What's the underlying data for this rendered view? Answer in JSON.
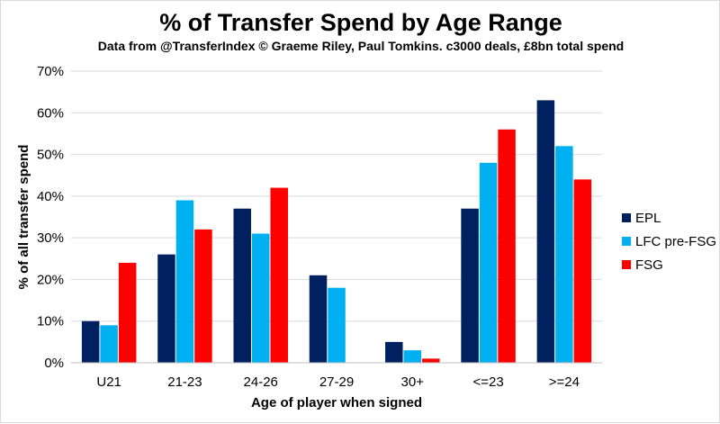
{
  "chart_data": {
    "type": "bar",
    "title": "% of Transfer Spend by Age Range",
    "subtitle": "Data from @TransferIndex © Graeme Riley, Paul Tomkins.  c3000 deals, £8bn total spend",
    "xlabel": "Age of player  when signed",
    "ylabel": "% of all transfer spend",
    "categories": [
      "U21",
      "21-23",
      "24-26",
      "27-29",
      "30+",
      "<=23",
      ">=24"
    ],
    "ylim": [
      0,
      70
    ],
    "yticks": [
      "0%",
      "10%",
      "20%",
      "30%",
      "40%",
      "50%",
      "60%",
      "70%"
    ],
    "grid": true,
    "legend_position": "right",
    "series": [
      {
        "name": "EPL",
        "color": "#002060",
        "values": [
          10,
          26,
          37,
          21,
          5,
          37,
          63
        ]
      },
      {
        "name": "LFC pre-FSG",
        "color": "#00b0f0",
        "values": [
          9,
          39,
          31,
          18,
          3,
          48,
          52
        ]
      },
      {
        "name": "FSG",
        "color": "#ff0000",
        "values": [
          24,
          32,
          42,
          0,
          1,
          56,
          44
        ]
      }
    ]
  }
}
